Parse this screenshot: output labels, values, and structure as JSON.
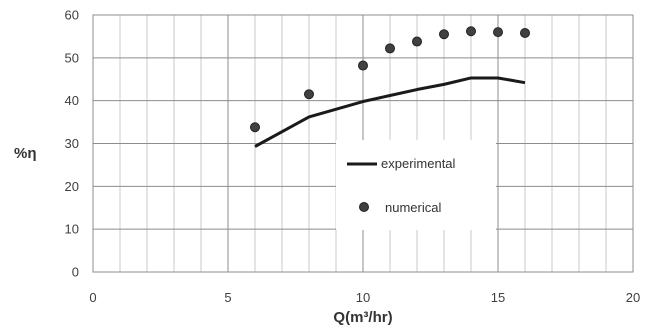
{
  "chart_data": {
    "type": "scatter",
    "title": "",
    "xlabel": "Q(m³/hr)",
    "ylabel": "%η",
    "xlim": [
      0,
      20
    ],
    "ylim": [
      0,
      60
    ],
    "x_ticks": [
      0,
      5,
      10,
      15,
      20
    ],
    "y_ticks": [
      0,
      10,
      20,
      30,
      40,
      50,
      60
    ],
    "grid": true,
    "grid_minor_x": 1,
    "legend_position": "center-right",
    "series": [
      {
        "name": "experimental",
        "kind": "line",
        "color": "#1a1a1a",
        "x": [
          6,
          8,
          10,
          11,
          12,
          13,
          14,
          15,
          16
        ],
        "y": [
          29.3,
          36.2,
          39.8,
          41.2,
          42.6,
          43.8,
          45.3,
          45.3,
          44.2
        ]
      },
      {
        "name": "numerical",
        "kind": "marker",
        "color": "#404040",
        "x": [
          6,
          8,
          10,
          11,
          12,
          13,
          14,
          15,
          16
        ],
        "y": [
          33.8,
          41.5,
          48.2,
          52.2,
          53.8,
          55.5,
          56.2,
          56.0,
          55.8
        ]
      }
    ]
  }
}
